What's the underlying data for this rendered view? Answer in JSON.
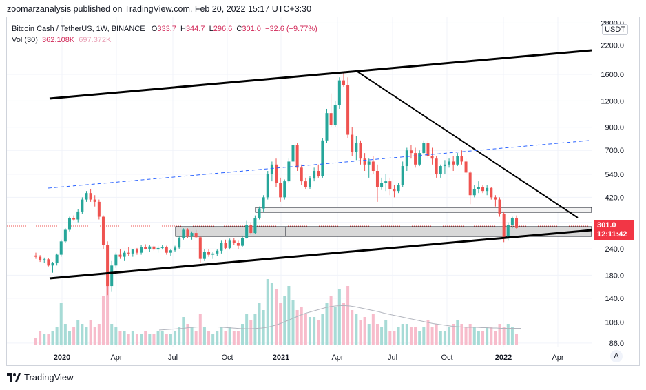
{
  "header": {
    "publisher_line": "zoomarzanalysis published on TradingView.com, Feb 20, 2022 15:17 UTC+3:30"
  },
  "legend": {
    "symbol": "Bitcoin Cash / TetherUS, 1W, BINANCE",
    "o_label": "O",
    "o_value": "333.7",
    "h_label": "H",
    "h_value": "344.7",
    "l_label": "L",
    "l_value": "296.6",
    "c_label": "C",
    "c_value": "301.0",
    "change": "−32.6 (−9.77%)",
    "vol_label": "Vol (30)",
    "vol_value": "362.108K",
    "vol_ma": "697.372K"
  },
  "currency_button": "USDT",
  "price_tag": {
    "price": "301.0",
    "countdown": "12:11:42"
  },
  "auto_button": "A",
  "footer": {
    "brand": "TradingView"
  },
  "colors": {
    "up": "#26a69a",
    "down": "#ef5350",
    "up_vol": "#a7dbd6",
    "down_vol": "#f7bccb",
    "trendline": "#000000",
    "dashed": "#2962ff",
    "tag": "#f23645"
  },
  "chart_data": {
    "type": "candlestick",
    "symbol": "BCHUSDT",
    "interval": "1W",
    "y_scale": "log",
    "y_ticks": [
      "2800.0",
      "2200.0",
      "1600.0",
      "1200.0",
      "900.0",
      "700.0",
      "540.0",
      "420.0",
      "320.0",
      "240.0",
      "180.0",
      "140.0",
      "108.0",
      "86.0"
    ],
    "x_ticks": [
      "2020",
      "Apr",
      "Jul",
      "Oct",
      "2021",
      "Apr",
      "Jul",
      "Oct",
      "2022",
      "Apr"
    ],
    "last_price": 301.0,
    "candles": [
      [
        223,
        230,
        215,
        220
      ],
      [
        220,
        224,
        208,
        212
      ],
      [
        212,
        218,
        205,
        214
      ],
      [
        214,
        216,
        198,
        200
      ],
      [
        200,
        208,
        185,
        205
      ],
      [
        205,
        228,
        200,
        225
      ],
      [
        225,
        265,
        220,
        260
      ],
      [
        260,
        300,
        255,
        295
      ],
      [
        295,
        340,
        290,
        335
      ],
      [
        335,
        345,
        325,
        330
      ],
      [
        330,
        370,
        320,
        360
      ],
      [
        360,
        420,
        350,
        410
      ],
      [
        410,
        450,
        400,
        440
      ],
      [
        440,
        460,
        400,
        410
      ],
      [
        410,
        430,
        380,
        400
      ],
      [
        400,
        410,
        330,
        340
      ],
      [
        340,
        345,
        240,
        250
      ],
      [
        250,
        260,
        145,
        160
      ],
      [
        160,
        210,
        150,
        200
      ],
      [
        200,
        230,
        195,
        225
      ],
      [
        225,
        240,
        215,
        220
      ],
      [
        220,
        235,
        210,
        230
      ],
      [
        230,
        245,
        222,
        228
      ],
      [
        228,
        240,
        220,
        238
      ],
      [
        238,
        242,
        225,
        230
      ],
      [
        230,
        250,
        225,
        245
      ],
      [
        245,
        252,
        238,
        240
      ],
      [
        240,
        250,
        232,
        246
      ],
      [
        246,
        250,
        235,
        238
      ],
      [
        238,
        248,
        230,
        242
      ],
      [
        242,
        250,
        238,
        245
      ],
      [
        245,
        248,
        225,
        230
      ],
      [
        230,
        240,
        222,
        236
      ],
      [
        236,
        248,
        232,
        243
      ],
      [
        243,
        275,
        240,
        270
      ],
      [
        270,
        300,
        265,
        295
      ],
      [
        295,
        300,
        270,
        275
      ],
      [
        275,
        290,
        265,
        285
      ],
      [
        285,
        295,
        270,
        272
      ],
      [
        272,
        276,
        205,
        215
      ],
      [
        215,
        240,
        210,
        232
      ],
      [
        232,
        240,
        220,
        225
      ],
      [
        225,
        232,
        215,
        228
      ],
      [
        228,
        238,
        222,
        235
      ],
      [
        235,
        262,
        228,
        255
      ],
      [
        255,
        265,
        238,
        242
      ],
      [
        242,
        268,
        238,
        262
      ],
      [
        262,
        270,
        250,
        255
      ],
      [
        255,
        262,
        240,
        248
      ],
      [
        248,
        275,
        245,
        270
      ],
      [
        270,
        325,
        268,
        310
      ],
      [
        310,
        320,
        280,
        285
      ],
      [
        285,
        345,
        282,
        335
      ],
      [
        335,
        380,
        330,
        372
      ],
      [
        372,
        430,
        360,
        420
      ],
      [
        420,
        560,
        410,
        540
      ],
      [
        540,
        620,
        500,
        600
      ],
      [
        600,
        640,
        470,
        490
      ],
      [
        490,
        520,
        400,
        420
      ],
      [
        420,
        510,
        410,
        500
      ],
      [
        500,
        640,
        490,
        620
      ],
      [
        620,
        760,
        600,
        740
      ],
      [
        740,
        760,
        560,
        580
      ],
      [
        580,
        600,
        480,
        500
      ],
      [
        500,
        520,
        460,
        470
      ],
      [
        470,
        530,
        460,
        515
      ],
      [
        515,
        580,
        500,
        560
      ],
      [
        560,
        600,
        520,
        530
      ],
      [
        530,
        800,
        520,
        780
      ],
      [
        780,
        1100,
        760,
        1050
      ],
      [
        1050,
        1300,
        900,
        920
      ],
      [
        920,
        1200,
        900,
        1150
      ],
      [
        1150,
        1550,
        1100,
        1500
      ],
      [
        1500,
        1620,
        1400,
        1420
      ],
      [
        1420,
        1550,
        800,
        830
      ],
      [
        830,
        900,
        660,
        690
      ],
      [
        690,
        820,
        630,
        760
      ],
      [
        760,
        780,
        600,
        640
      ],
      [
        640,
        680,
        560,
        600
      ],
      [
        600,
        640,
        520,
        620
      ],
      [
        620,
        660,
        540,
        560
      ],
      [
        560,
        600,
        400,
        470
      ],
      [
        470,
        520,
        455,
        490
      ],
      [
        490,
        540,
        450,
        500
      ],
      [
        500,
        520,
        430,
        460
      ],
      [
        460,
        480,
        420,
        450
      ],
      [
        450,
        490,
        440,
        480
      ],
      [
        480,
        620,
        470,
        590
      ],
      [
        590,
        720,
        560,
        700
      ],
      [
        700,
        740,
        640,
        680
      ],
      [
        680,
        720,
        580,
        600
      ],
      [
        600,
        700,
        590,
        680
      ],
      [
        680,
        780,
        670,
        760
      ],
      [
        760,
        780,
        640,
        660
      ],
      [
        660,
        720,
        600,
        640
      ],
      [
        640,
        660,
        520,
        540
      ],
      [
        540,
        600,
        520,
        590
      ],
      [
        590,
        630,
        540,
        600
      ],
      [
        600,
        640,
        580,
        620
      ],
      [
        620,
        660,
        560,
        600
      ],
      [
        600,
        680,
        590,
        660
      ],
      [
        660,
        700,
        600,
        620
      ],
      [
        620,
        640,
        540,
        550
      ],
      [
        550,
        560,
        390,
        430
      ],
      [
        430,
        480,
        420,
        460
      ],
      [
        460,
        500,
        440,
        470
      ],
      [
        470,
        480,
        440,
        450
      ],
      [
        450,
        480,
        430,
        465
      ],
      [
        465,
        470,
        410,
        420
      ],
      [
        420,
        430,
        380,
        410
      ],
      [
        410,
        420,
        340,
        350
      ],
      [
        350,
        360,
        258,
        270
      ],
      [
        270,
        320,
        262,
        310
      ],
      [
        310,
        340,
        300,
        335
      ],
      [
        334,
        345,
        297,
        301
      ]
    ],
    "volume": [
      2,
      4,
      3,
      3,
      4,
      5,
      12,
      6,
      4,
      5,
      7,
      6,
      5,
      7,
      5,
      6,
      14,
      20,
      6,
      5,
      4,
      4,
      3,
      4,
      3,
      3,
      4,
      3,
      3,
      4,
      4,
      3,
      3,
      4,
      5,
      8,
      6,
      5,
      4,
      9,
      5,
      4,
      3,
      4,
      5,
      4,
      5,
      4,
      4,
      6,
      9,
      7,
      9,
      12,
      10,
      19,
      18,
      16,
      12,
      14,
      17,
      13,
      10,
      11,
      9,
      8,
      8,
      7,
      9,
      12,
      14,
      11,
      16,
      12,
      17,
      10,
      9,
      7,
      8,
      6,
      9,
      6,
      5,
      7,
      4,
      4,
      5,
      6,
      6,
      5,
      5,
      4,
      5,
      7,
      5,
      6,
      4,
      4,
      5,
      6,
      7,
      6,
      5,
      6,
      5,
      4,
      4,
      5,
      5,
      4,
      6,
      5,
      6,
      5,
      3
    ],
    "volume_ma": [
      4.2,
      4.3,
      4.4,
      4.5,
      4.6,
      4.7,
      4.9,
      5.0,
      5.1,
      5.1,
      5.1,
      5.1,
      5.1,
      5.0,
      4.9,
      4.8,
      4.7,
      4.6,
      4.6,
      4.6,
      4.7,
      4.8,
      5.0,
      5.3,
      5.7,
      6.2,
      6.8,
      7.4,
      8.0,
      8.6,
      9.1,
      9.5,
      9.9,
      10.3,
      10.7,
      11.0,
      11.2,
      11.3,
      11.3,
      11.2,
      11.0,
      10.7,
      10.4,
      10.1,
      9.8,
      9.5,
      9.1,
      8.8,
      8.5,
      8.2,
      7.9,
      7.6,
      7.3,
      7.0,
      6.7,
      6.4,
      6.1,
      5.9,
      5.7,
      5.5,
      5.3,
      5.2,
      5.1,
      5.0,
      5.0,
      5.0,
      4.9,
      4.9,
      4.8,
      4.8,
      4.7,
      4.7,
      4.7,
      4.7,
      4.7
    ]
  }
}
